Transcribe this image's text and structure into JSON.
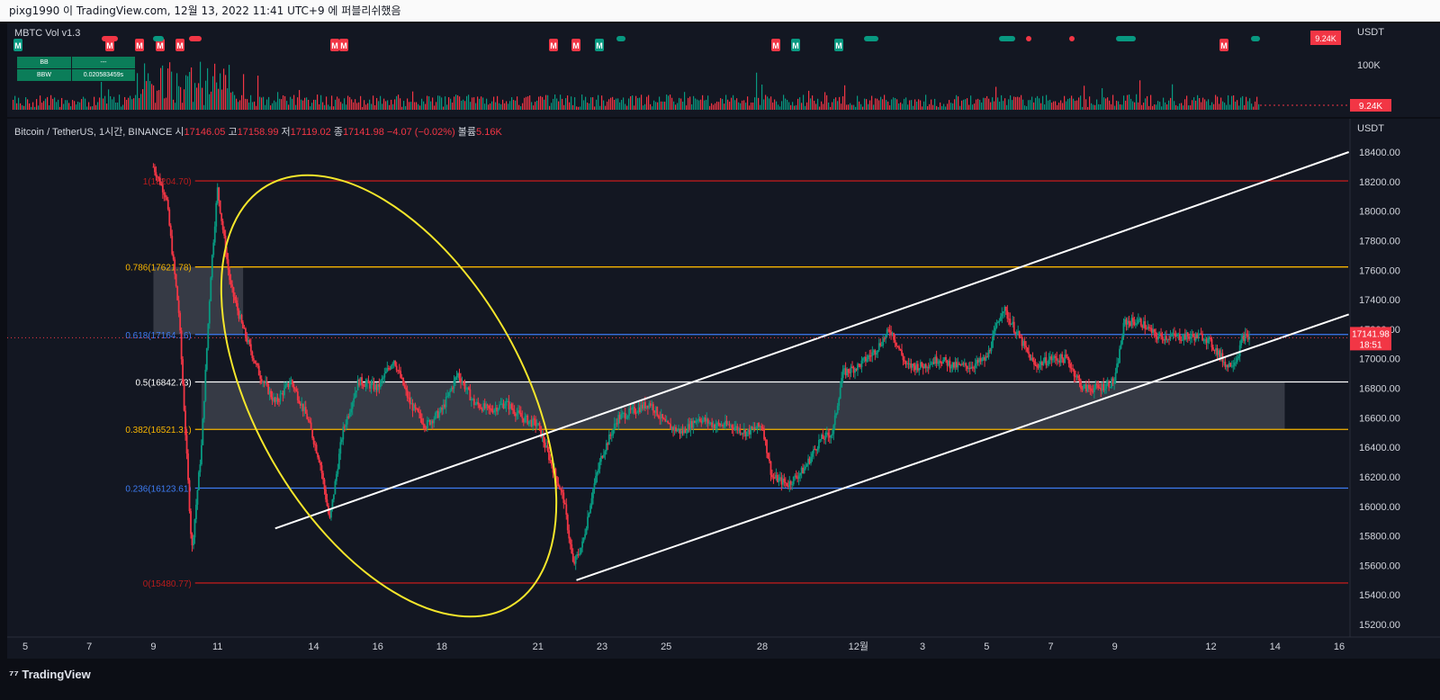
{
  "header": {
    "text": "pixg1990 이 TradingView.com, 12월 13, 2022 11:41 UTC+9 에 퍼블리쉬했음"
  },
  "indicator": {
    "title": "MBTC Vol v1.3",
    "unit": "USDT",
    "ticks": [
      "100K"
    ],
    "badge_value": "9.24K",
    "table": [
      [
        "BB",
        "---"
      ],
      [
        "BBW",
        "0.020583459s"
      ]
    ],
    "marker_letter": "M"
  },
  "legend": {
    "symbol": "Bitcoin / TetherUS, 1시간, BINANCE",
    "open_label": "시",
    "open": "17146.05",
    "high_label": "고",
    "high": "17158.99",
    "low_label": "저",
    "low": "17119.02",
    "close_label": "종",
    "close": "17141.98",
    "change": "−4.07 (−0.02%)",
    "vol_label": "볼륨",
    "vol": "5.16K"
  },
  "footer": {
    "logo_text": "TradingView"
  },
  "chart_data": {
    "type": "candlestick",
    "unit": "USDT",
    "ylim": [
      15000,
      18600
    ],
    "y_ticks": [
      15200,
      15400,
      15600,
      15800,
      16000,
      16200,
      16400,
      16600,
      16800,
      17000,
      17200,
      17400,
      17600,
      17800,
      18000,
      18200,
      18400
    ],
    "y_tick_labels": [
      "15200.00",
      "15400.00",
      "15600.00",
      "15800.00",
      "16000.00",
      "16200.00",
      "16400.00",
      "16600.00",
      "16800.00",
      "17000.00",
      "17200.00",
      "17400.00",
      "17600.00",
      "17800.00",
      "18000.00",
      "18200.00",
      "18400.00"
    ],
    "x_ticks": [
      {
        "label": "5",
        "day": 5
      },
      {
        "label": "7",
        "day": 7
      },
      {
        "label": "9",
        "day": 9
      },
      {
        "label": "11",
        "day": 11
      },
      {
        "label": "14",
        "day": 14
      },
      {
        "label": "16",
        "day": 16
      },
      {
        "label": "18",
        "day": 18
      },
      {
        "label": "21",
        "day": 21
      },
      {
        "label": "23",
        "day": 23
      },
      {
        "label": "25",
        "day": 25
      },
      {
        "label": "28",
        "day": 28
      },
      {
        "label": "12월",
        "day": 31
      },
      {
        "label": "3",
        "day": 33
      },
      {
        "label": "5",
        "day": 35
      },
      {
        "label": "7",
        "day": 37
      },
      {
        "label": "9",
        "day": 39
      },
      {
        "label": "12",
        "day": 42
      },
      {
        "label": "14",
        "day": 44
      },
      {
        "label": "16",
        "day": 46
      }
    ],
    "xlim": [
      4.6,
      46.5
    ],
    "last_price": "17141.98",
    "countdown": "18:51",
    "fib_levels": [
      {
        "label": "1(18204.70)",
        "ratio": 1,
        "price": 18204.7,
        "color": "#b71c1c"
      },
      {
        "label": "0.786(17621.78)",
        "ratio": 0.786,
        "price": 17621.78,
        "color": "#f7b500"
      },
      {
        "label": "0.618(17164.16)",
        "ratio": 0.618,
        "price": 17164.16,
        "color": "#3d7bf2"
      },
      {
        "label": "0.5(16842.73)",
        "ratio": 0.5,
        "price": 16842.73,
        "color": "#ffffff"
      },
      {
        "label": "0.382(16521.31)",
        "ratio": 0.382,
        "price": 16521.31,
        "color": "#f7b500"
      },
      {
        "label": "0.236(16123.61)",
        "ratio": 0.236,
        "price": 16123.61,
        "color": "#3d7bf2"
      },
      {
        "label": "0(15480.77)",
        "ratio": 0,
        "price": 15480.77,
        "color": "#b71c1c"
      }
    ],
    "candles_anchor_path": [
      [
        9.0,
        18300
      ],
      [
        9.4,
        18100
      ],
      [
        9.8,
        17300
      ],
      [
        10.2,
        15700
      ],
      [
        10.5,
        16400
      ],
      [
        10.8,
        17600
      ],
      [
        11.0,
        18150
      ],
      [
        11.4,
        17500
      ],
      [
        11.8,
        17200
      ],
      [
        12.3,
        16900
      ],
      [
        12.8,
        16700
      ],
      [
        13.3,
        16850
      ],
      [
        13.8,
        16600
      ],
      [
        14.2,
        16300
      ],
      [
        14.5,
        15900
      ],
      [
        14.9,
        16500
      ],
      [
        15.4,
        16850
      ],
      [
        16.0,
        16800
      ],
      [
        16.5,
        17000
      ],
      [
        17.0,
        16700
      ],
      [
        17.5,
        16550
      ],
      [
        18.0,
        16650
      ],
      [
        18.5,
        16900
      ],
      [
        19.0,
        16700
      ],
      [
        19.5,
        16650
      ],
      [
        20.0,
        16700
      ],
      [
        20.5,
        16600
      ],
      [
        21.0,
        16550
      ],
      [
        21.4,
        16300
      ],
      [
        21.8,
        16050
      ],
      [
        22.1,
        15600
      ],
      [
        22.4,
        15750
      ],
      [
        22.7,
        16100
      ],
      [
        23.0,
        16350
      ],
      [
        23.5,
        16600
      ],
      [
        24.0,
        16650
      ],
      [
        24.5,
        16700
      ],
      [
        25.0,
        16550
      ],
      [
        25.5,
        16500
      ],
      [
        26.0,
        16600
      ],
      [
        26.5,
        16550
      ],
      [
        27.0,
        16550
      ],
      [
        27.5,
        16500
      ],
      [
        28.0,
        16550
      ],
      [
        28.3,
        16200
      ],
      [
        28.8,
        16150
      ],
      [
        29.3,
        16250
      ],
      [
        29.8,
        16450
      ],
      [
        30.2,
        16500
      ],
      [
        30.5,
        16900
      ],
      [
        31.0,
        16950
      ],
      [
        31.5,
        17050
      ],
      [
        32.0,
        17200
      ],
      [
        32.5,
        16950
      ],
      [
        33.0,
        16950
      ],
      [
        33.5,
        17000
      ],
      [
        34.0,
        16950
      ],
      [
        34.5,
        16950
      ],
      [
        35.0,
        17000
      ],
      [
        35.5,
        17350
      ],
      [
        36.0,
        17150
      ],
      [
        36.5,
        16950
      ],
      [
        37.0,
        17000
      ],
      [
        37.5,
        17000
      ],
      [
        38.0,
        16800
      ],
      [
        38.5,
        16800
      ],
      [
        39.0,
        16850
      ],
      [
        39.3,
        17250
      ],
      [
        39.8,
        17250
      ],
      [
        40.3,
        17150
      ],
      [
        40.8,
        17150
      ],
      [
        41.3,
        17150
      ],
      [
        41.8,
        17150
      ],
      [
        42.2,
        17050
      ],
      [
        42.5,
        16950
      ],
      [
        42.8,
        17000
      ],
      [
        43.0,
        17150
      ],
      [
        43.2,
        17142
      ]
    ],
    "annotations": {
      "channel_upper": {
        "start": [
          12.8,
          15850
        ],
        "end": [
          46.3,
          18400
        ]
      },
      "channel_lower": {
        "start": [
          22.2,
          15500
        ],
        "end": [
          46.3,
          17300
        ]
      },
      "box_upper": {
        "x0": 9.0,
        "x1": 11.8,
        "y0": 17164.16,
        "y1": 17621.78
      },
      "box_lower": {
        "x0": 10.5,
        "x1": 44.3,
        "y0": 16521.31,
        "y1": 16842.73
      },
      "ellipse_color": "#f5e62b"
    }
  }
}
